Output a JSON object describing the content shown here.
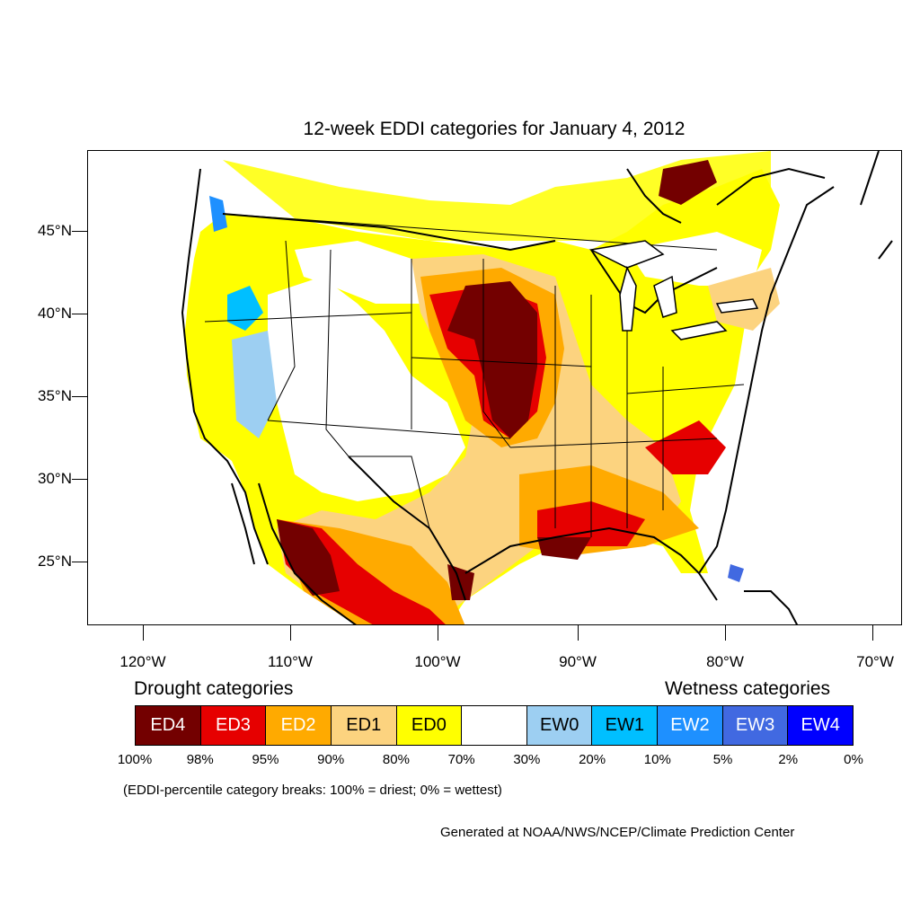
{
  "title": "12-week EDDI categories for January 4, 2012",
  "map": {
    "lat_labels": [
      "45°N",
      "40°N",
      "35°N",
      "30°N",
      "25°N"
    ],
    "lon_labels": [
      "120°W",
      "110°W",
      "100°W",
      "90°W",
      "80°W",
      "70°W"
    ]
  },
  "legend": {
    "drought_heading": "Drought categories",
    "wetness_heading": "Wetness categories",
    "categories": [
      {
        "label": "ED4",
        "color": "#730000",
        "text_color": "#ffffff"
      },
      {
        "label": "ED3",
        "color": "#e60000",
        "text_color": "#ffffff"
      },
      {
        "label": "ED2",
        "color": "#ffaa00",
        "text_color": "#ffffff"
      },
      {
        "label": "ED1",
        "color": "#fcd37f",
        "text_color": "#000000"
      },
      {
        "label": "ED0",
        "color": "#ffff00",
        "text_color": "#000000"
      },
      {
        "label": "",
        "color": "#ffffff",
        "text_color": "#000000"
      },
      {
        "label": "EW0",
        "color": "#9dcff2",
        "text_color": "#000000"
      },
      {
        "label": "EW1",
        "color": "#00bfff",
        "text_color": "#000000"
      },
      {
        "label": "EW2",
        "color": "#1e90ff",
        "text_color": "#ffffff"
      },
      {
        "label": "EW3",
        "color": "#4169e1",
        "text_color": "#ffffff"
      },
      {
        "label": "EW4",
        "color": "#0000ff",
        "text_color": "#ffffff"
      }
    ],
    "percentiles": [
      "100%",
      "98%",
      "95%",
      "90%",
      "80%",
      "70%",
      "30%",
      "20%",
      "10%",
      "5%",
      "2%",
      "0%"
    ]
  },
  "note": "(EDDI-percentile category breaks: 100% = driest; 0% = wettest)",
  "credit": "Generated at NOAA/NWS/NCEP/Climate Prediction Center"
}
